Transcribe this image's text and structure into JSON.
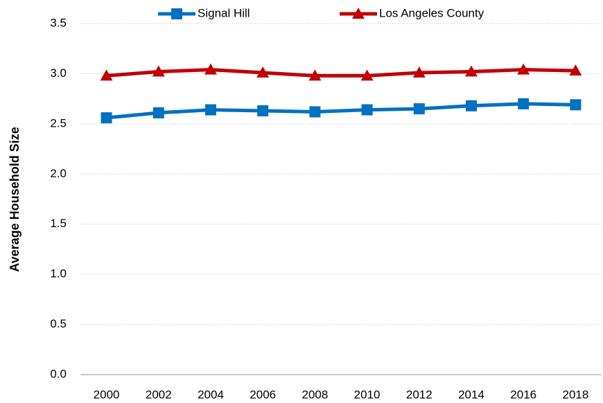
{
  "chart_data": {
    "type": "line",
    "y_label": "Average Household Size",
    "categories": [
      "2000",
      "2002",
      "2004",
      "2006",
      "2008",
      "2010",
      "2012",
      "2014",
      "2016",
      "2018"
    ],
    "series": [
      {
        "name": "Signal Hill",
        "color": "#0070c0",
        "marker": "square",
        "values": [
          2.56,
          2.61,
          2.64,
          2.63,
          2.62,
          2.64,
          2.65,
          2.68,
          2.7,
          2.69
        ]
      },
      {
        "name": "Los Angeles County",
        "color": "#c00000",
        "marker": "triangle",
        "values": [
          2.98,
          3.02,
          3.04,
          3.01,
          2.98,
          2.98,
          3.01,
          3.02,
          3.04,
          3.03
        ]
      }
    ],
    "ylim": [
      0,
      3.5
    ],
    "yticks": [
      {
        "value": 0,
        "label": "0.0"
      },
      0.5,
      {
        "value": 1,
        "label": "1.0"
      },
      1.5,
      {
        "value": 2,
        "label": "2.0"
      },
      2.5,
      {
        "value": 3,
        "label": "3.0"
      },
      3.5
    ],
    "grid": true,
    "legend": "top"
  }
}
